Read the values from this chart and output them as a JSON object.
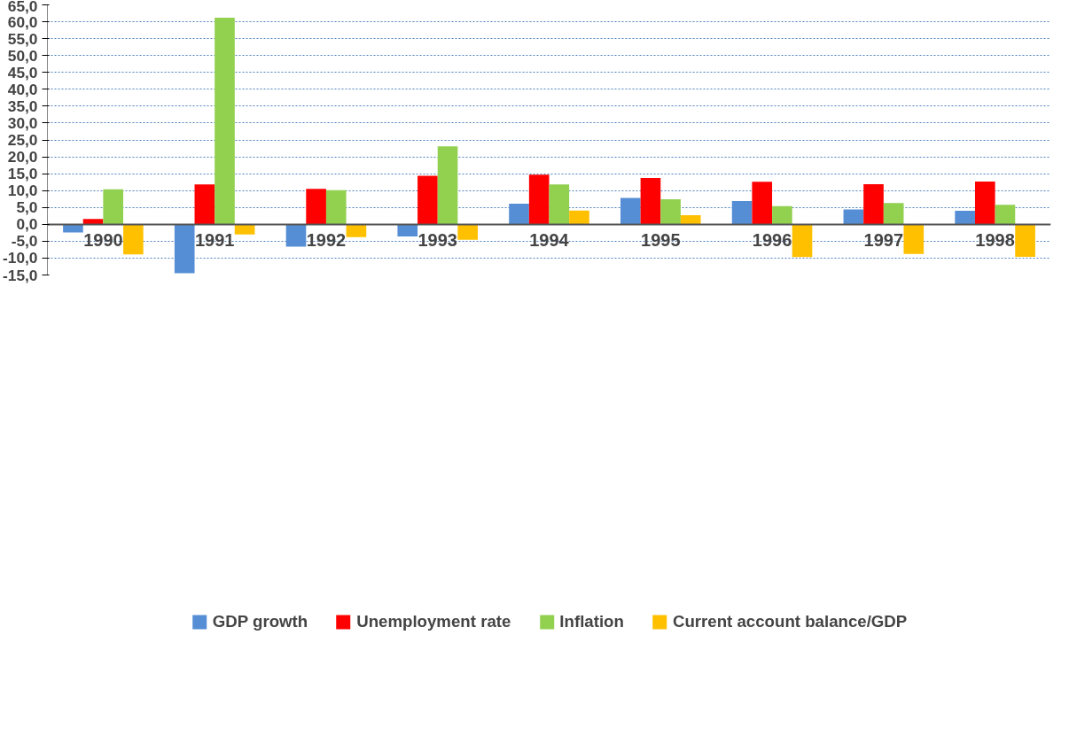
{
  "chart_data": {
    "type": "bar",
    "categories": [
      "1990",
      "1991",
      "1992",
      "1993",
      "1994",
      "1995",
      "1996",
      "1997",
      "1998"
    ],
    "series": [
      {
        "name": "GDP growth",
        "color": "#558ed5",
        "values": [
          -2.4,
          -14.5,
          -6.6,
          -3.6,
          6.1,
          7.8,
          6.9,
          4.4,
          4.0
        ]
      },
      {
        "name": "Unemployment rate",
        "color": "#ff0000",
        "values": [
          1.6,
          11.8,
          10.5,
          14.4,
          14.7,
          13.7,
          12.6,
          11.9,
          12.7
        ]
      },
      {
        "name": "Inflation",
        "color": "#92d050",
        "values": [
          10.4,
          61.2,
          10.1,
          23.1,
          11.8,
          7.4,
          5.4,
          6.3,
          5.8
        ]
      },
      {
        "name": "Current account balance/GDP",
        "color": "#ffc000",
        "values": [
          -8.9,
          -3.0,
          -3.8,
          -4.6,
          4.1,
          2.7,
          -9.7,
          -8.8,
          -9.6
        ]
      }
    ],
    "ylim": [
      -15,
      65
    ],
    "yticks": [
      {
        "value": -15,
        "label": "-15,0"
      },
      {
        "value": -10,
        "label": "-10,0"
      },
      {
        "value": -5,
        "label": "-5,0"
      },
      {
        "value": 0,
        "label": "0,0"
      },
      {
        "value": 5,
        "label": "5,0"
      },
      {
        "value": 10,
        "label": "10,0"
      },
      {
        "value": 15,
        "label": "15,0"
      },
      {
        "value": 20,
        "label": "20,0"
      },
      {
        "value": 25,
        "label": "25,0"
      },
      {
        "value": 30,
        "label": "30,0"
      },
      {
        "value": 35,
        "label": "35,0"
      },
      {
        "value": 40,
        "label": "40,0"
      },
      {
        "value": 45,
        "label": "45,0"
      },
      {
        "value": 50,
        "label": "50,0"
      },
      {
        "value": 55,
        "label": "55,0"
      },
      {
        "value": 60,
        "label": "60,0"
      },
      {
        "value": 65,
        "label": "65,0"
      }
    ],
    "grid": "y",
    "legend": "bottom"
  }
}
